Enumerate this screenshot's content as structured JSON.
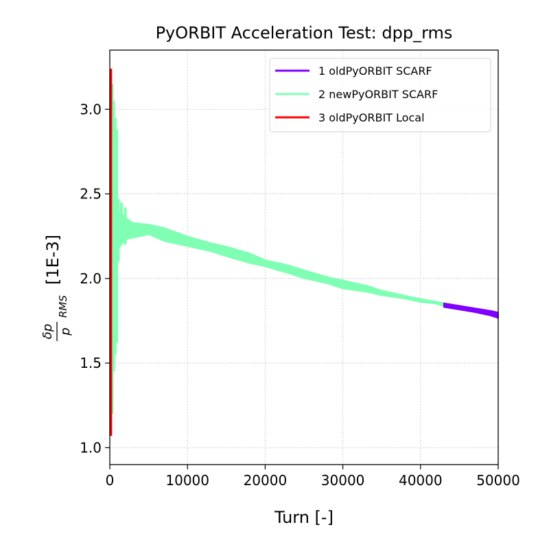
{
  "chart_data": {
    "type": "line",
    "title": "PyORBIT Acceleration Test: dpp_rms",
    "xlabel": "Turn [-]",
    "ylabel_fraction_numerator": "δp",
    "ylabel_fraction_denominator": "p",
    "ylabel_subscript": "RMS",
    "ylabel_unit": "[1E-3]",
    "xlim": [
      0,
      50000
    ],
    "ylim": [
      0.9,
      3.35
    ],
    "x_ticks": [
      0,
      10000,
      20000,
      30000,
      40000,
      50000
    ],
    "x_tick_labels": [
      "0",
      "10000",
      "20000",
      "30000",
      "40000",
      "50000"
    ],
    "y_ticks": [
      1.0,
      1.5,
      2.0,
      2.5,
      3.0
    ],
    "y_tick_labels": [
      "1.0",
      "1.5",
      "2.0",
      "2.5",
      "3.0"
    ],
    "grid": true,
    "legend_position": "top-right",
    "series": [
      {
        "name": "1 oldPyORBIT SCARF",
        "color": "#8000ff",
        "band_low": [
          [
            43000,
            1.83
          ],
          [
            45000,
            1.815
          ],
          [
            47000,
            1.8
          ],
          [
            49000,
            1.78
          ],
          [
            50000,
            1.765
          ]
        ],
        "band_high": [
          [
            43000,
            1.855
          ],
          [
            45000,
            1.84
          ],
          [
            47000,
            1.825
          ],
          [
            49000,
            1.81
          ],
          [
            50000,
            1.8
          ]
        ]
      },
      {
        "name": "2 newPyORBIT SCARF",
        "color": "#80ffb4",
        "spikes": [
          [
            100,
            1.07,
            3.2
          ],
          [
            300,
            1.2,
            3.15
          ],
          [
            500,
            1.45,
            3.05
          ],
          [
            700,
            1.55,
            2.95
          ],
          [
            900,
            1.62,
            2.88
          ],
          [
            1100,
            2.1,
            2.47
          ],
          [
            1500,
            2.2,
            2.45
          ],
          [
            2000,
            2.2,
            2.42
          ]
        ],
        "band_low": [
          [
            1200,
            2.18
          ],
          [
            2000,
            2.23
          ],
          [
            3000,
            2.24
          ],
          [
            5000,
            2.26
          ],
          [
            7000,
            2.22
          ],
          [
            10000,
            2.19
          ],
          [
            13000,
            2.16
          ],
          [
            15000,
            2.13
          ],
          [
            18000,
            2.09
          ],
          [
            20000,
            2.07
          ],
          [
            23000,
            2.03
          ],
          [
            25000,
            2.0
          ],
          [
            28000,
            1.97
          ],
          [
            30000,
            1.94
          ],
          [
            33000,
            1.92
          ],
          [
            35000,
            1.9
          ],
          [
            38000,
            1.88
          ],
          [
            40000,
            1.86
          ],
          [
            42000,
            1.85
          ],
          [
            43000,
            1.835
          ]
        ],
        "band_high": [
          [
            1200,
            2.4
          ],
          [
            2000,
            2.36
          ],
          [
            3000,
            2.33
          ],
          [
            5000,
            2.32
          ],
          [
            7000,
            2.3
          ],
          [
            10000,
            2.25
          ],
          [
            13000,
            2.21
          ],
          [
            15000,
            2.19
          ],
          [
            18000,
            2.15
          ],
          [
            20000,
            2.11
          ],
          [
            23000,
            2.08
          ],
          [
            25000,
            2.05
          ],
          [
            28000,
            2.01
          ],
          [
            30000,
            1.99
          ],
          [
            33000,
            1.96
          ],
          [
            35000,
            1.93
          ],
          [
            38000,
            1.9
          ],
          [
            40000,
            1.88
          ],
          [
            42000,
            1.865
          ],
          [
            43000,
            1.855
          ]
        ]
      },
      {
        "name": "3 oldPyORBIT Local",
        "color": "#ff0000",
        "x_extent": [
          0,
          300
        ],
        "y_extent": [
          1.07,
          3.24
        ]
      }
    ]
  }
}
